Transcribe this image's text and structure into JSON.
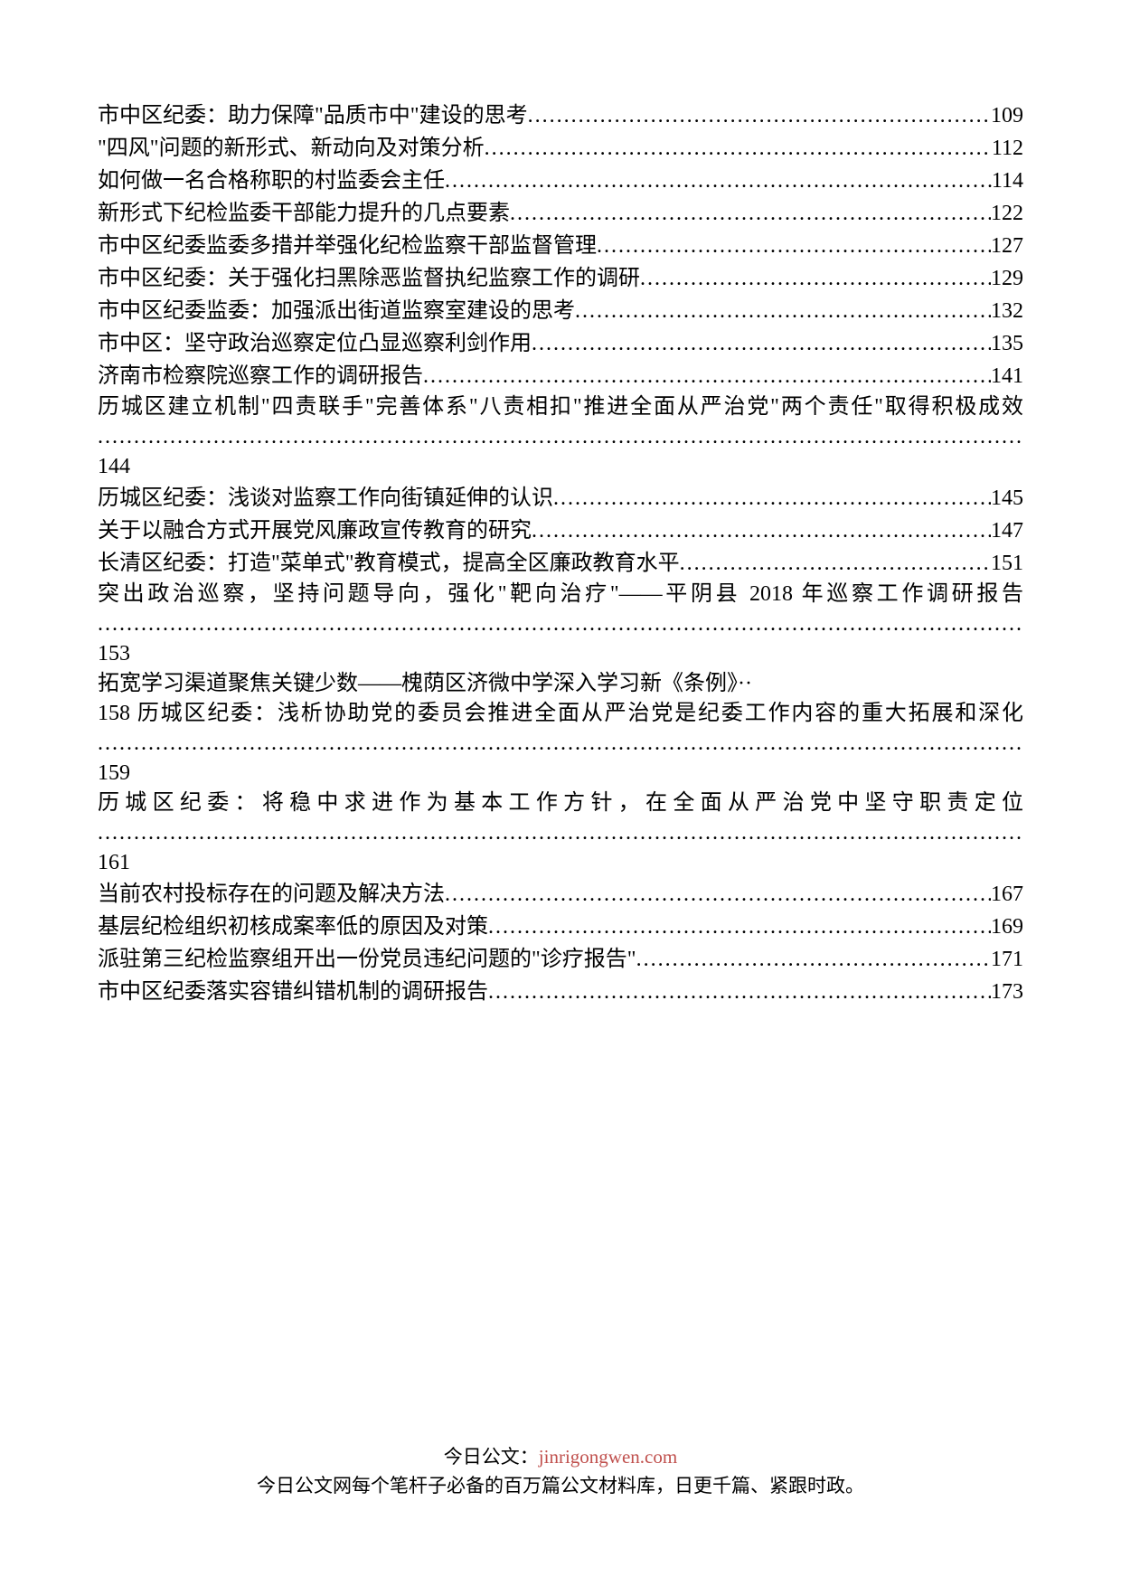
{
  "entries": [
    {
      "title": "市中区纪委：助力保障\"品质市中\"建设的思考",
      "page": "109"
    },
    {
      "title": "\"四风\"问题的新形式、新动向及对策分析",
      "page": "112"
    },
    {
      "title": "如何做一名合格称职的村监委会主任",
      "page": "114"
    },
    {
      "title": "新形式下纪检监委干部能力提升的几点要素",
      "page": "122"
    },
    {
      "title": "市中区纪委监委多措并举强化纪检监察干部监督管理",
      "page": "127"
    },
    {
      "title": "市中区纪委：关于强化扫黑除恶监督执纪监察工作的调研",
      "page": "129"
    },
    {
      "title": "市中区纪委监委：加强派出街道监察室建设的思考",
      "page": "132"
    },
    {
      "title": "市中区：坚守政治巡察定位凸显巡察利剑作用",
      "page": "135"
    },
    {
      "title": "济南市检察院巡察工作的调研报告",
      "page": "141"
    }
  ],
  "wrap1": {
    "text": "历城区建立机制\"四责联手\"完善体系\"八责相扣\"推进全面从严治党\"两个责任\"取得积极成效",
    "page": "144"
  },
  "entries2": [
    {
      "title": "历城区纪委：浅谈对监察工作向街镇延伸的认识",
      "page": "145"
    },
    {
      "title": "关于以融合方式开展党风廉政宣传教育的研究",
      "page": "147"
    },
    {
      "title": "长清区纪委：打造\"菜单式\"教育模式，提高全区廉政教育水平",
      "page": "151"
    }
  ],
  "wrap2": {
    "text": "突出政治巡察，坚持问题导向，强化\"靶向治疗\"——平阴县 2018 年巡察工作调研报告",
    "page": "153"
  },
  "wrap3": {
    "line1": "拓宽学习渠道聚焦关键少数——槐荫区济微中学深入学习新《条例》··",
    "text": "158 历城区纪委：浅析协助党的委员会推进全面从严治党是纪委工作内容的重大拓展和深化",
    "page": "159"
  },
  "wrap4": {
    "text": "历城区纪委：将稳中求进作为基本工作方针，在全面从严治党中坚守职责定位",
    "page": "161"
  },
  "entries3": [
    {
      "title": "当前农村投标存在的问题及解决方法",
      "page": "167"
    },
    {
      "title": "基层纪检组织初核成案率低的原因及对策",
      "page": "169"
    },
    {
      "title": "派驻第三纪检监察组开出一份党员违纪问题的\"诊疗报告\"",
      "page": "171"
    },
    {
      "title": "市中区纪委落实容错纠错机制的调研报告",
      "page": "173"
    }
  ],
  "footer": {
    "line1_prefix": "今日公文：",
    "line1_link": "jinrigongwen.com",
    "line2": "今日公文网每个笔杆子必备的百万篇公文材料库，日更千篇、紧跟时政。"
  }
}
